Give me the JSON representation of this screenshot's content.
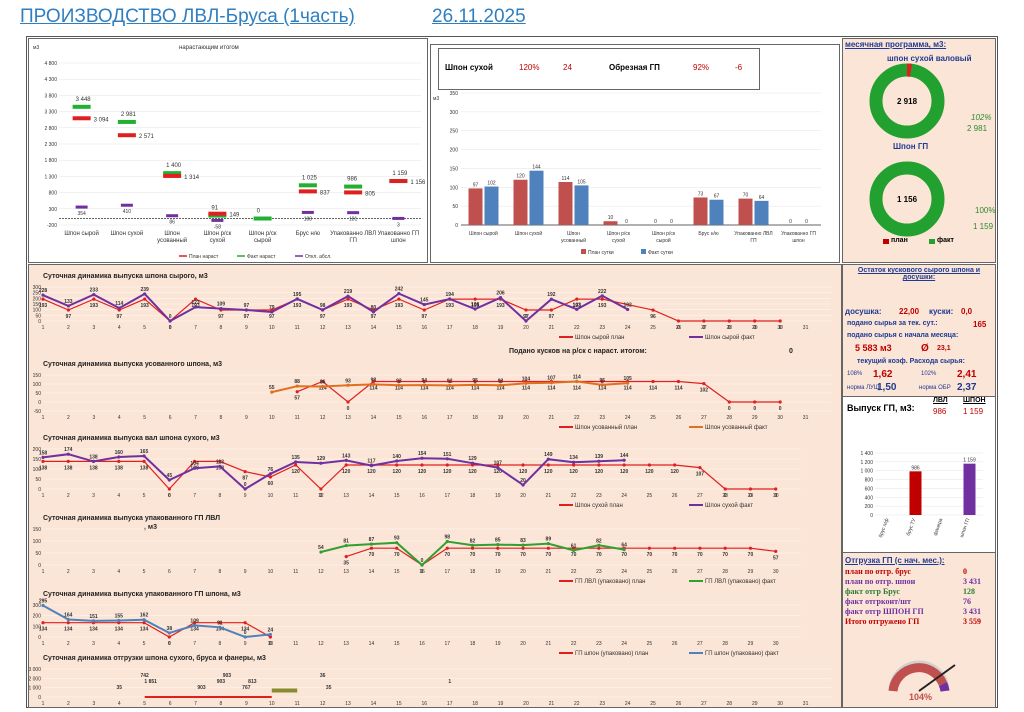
{
  "header": {
    "title": "ПРОИЗВОДСТВО ЛВЛ-Бруса (1часть)",
    "date": "26.11.2025"
  },
  "cum": {
    "unit": "м3",
    "title": "нарастающим итогом",
    "yticks": [
      "4 800",
      "4 300",
      "3 800",
      "3 300",
      "2 800",
      "2 300",
      "1 800",
      "1 300",
      "800",
      "300",
      "-200"
    ],
    "categories": [
      "Шпон сырой",
      "Шпон сухой",
      "Шпон усованный",
      "Шпон р/ск сухой",
      "Шпон р/ск сырой",
      "Брус н/ю",
      "Упакованно ЛВЛ ГП",
      "Упакованно ГП шпон"
    ],
    "plan_labels": [
      "3 094",
      "2 571",
      "1 314",
      "149",
      "",
      "837",
      "805",
      "1 156"
    ],
    "fact_labels": [
      "3 448",
      "2 981",
      "1 400",
      "91",
      "0",
      "1 025",
      "986",
      "1 159"
    ],
    "dev_labels": [
      "354",
      "410",
      "86",
      "-58",
      "",
      "188",
      "181",
      "3"
    ],
    "legend": [
      "План нараст",
      "Факт нараст",
      "Откл. абсл."
    ]
  },
  "pct": {
    "label1": "Шпон сухой",
    "pct1": "120%",
    "val1": "24",
    "label2": "Обрезная ГП",
    "pct2": "92%",
    "val2": "-6"
  },
  "chart_data": [
    {
      "type": "line",
      "title": "нарастающим итогом",
      "categories": [
        "Шпон сырой",
        "Шпон сухой",
        "Шпон усованный",
        "Шпон р/ск сухой",
        "Шпон р/ск сырой",
        "Брус н/ю",
        "Упакованно ЛВЛ ГП",
        "Упакованно ГП шпон"
      ],
      "series": [
        {
          "name": "План нараст",
          "values": [
            3094,
            2571,
            1314,
            149,
            null,
            837,
            805,
            1156
          ]
        },
        {
          "name": "Факт нараст",
          "values": [
            3448,
            2981,
            1400,
            91,
            0,
            1025,
            986,
            1159
          ]
        },
        {
          "name": "Откл. абсл.",
          "values": [
            354,
            410,
            86,
            -58,
            null,
            188,
            181,
            3
          ]
        }
      ],
      "ylim": [
        -200,
        4800
      ]
    },
    {
      "type": "bar",
      "title": "суточный",
      "categories": [
        "Шпон сырой",
        "Шпон сухой",
        "Шпон усованный",
        "Шпон р/ск сухой",
        "Шпон р/ск сырой",
        "Брус н/ю",
        "Упакованно ЛВЛ ГП",
        "Упакованно ГП шпон"
      ],
      "series": [
        {
          "name": "План сутки",
          "values": [
            97,
            120,
            114,
            10,
            0,
            73,
            70,
            0
          ]
        },
        {
          "name": "Факт сутки",
          "values": [
            102,
            144,
            105,
            0,
            0,
            67,
            64,
            0
          ]
        }
      ],
      "ylim": [
        0,
        350
      ]
    }
  ],
  "daily_bar": {
    "yticks": [
      "350",
      "300",
      "250",
      "200",
      "150",
      "100",
      "50",
      "0"
    ],
    "unit": "м3",
    "legend": [
      "План сутки",
      "Факт сутки"
    ],
    "categories": [
      "Шпон сырой",
      "Шпон сухой",
      "Шпон усованный",
      "Шпон р/ск сухой",
      "Шпон р/ск сырой",
      "Брус н/ю",
      "Упакованно ЛВЛ ГП",
      "Упакованно ГП шпон"
    ]
  },
  "month": {
    "title": "месячная программа, м3:",
    "d1_title": "шпон сухой валовый",
    "d1_center": "2 918",
    "d1_pct": "102%",
    "d1_fact": "2 981",
    "d2_title": "Шпон ГП",
    "d2_center": "1 156",
    "d2_pct": "100%",
    "d2_fact": "1 159",
    "legend_plan": "план",
    "legend_fact": "факт"
  },
  "stock": {
    "title": "Остаток кускового сырого шпона и досушки:",
    "dosushka_lbl": "досушка:",
    "dosushka_val": "22,00",
    "kuski_lbl": "куски:",
    "kuski_val": "0,0",
    "podano_lbl": "подано сырья за тек. сут.:",
    "podano_val": "165",
    "podano_m_lbl": "подано сырья с начала месяца:",
    "podano_m_val": "5 583 м3",
    "avg_sym": "Ø",
    "avg_val": "23,1",
    "koef_lbl": "текущий коэф. Расхода сырья:",
    "k1_pct": "108%",
    "k1_val": "1,62",
    "k2_pct": "102%",
    "k2_val": "2,41",
    "norm1_lbl": "норма ЛУЩ:",
    "norm1_val": "1,50",
    "norm2_lbl": "норма ОБР",
    "norm2_val": "2,37"
  },
  "gp": {
    "title": "Выпуск ГП, м3:",
    "col1": "ЛВЛ",
    "col2": "ШПОН",
    "v1": "986",
    "v2": "1 159"
  },
  "gpbar": {
    "yticks": [
      "1 400",
      "1 200",
      "1 000",
      "800",
      "600",
      "400",
      "200",
      "0"
    ],
    "categories": [
      "брус п/ф",
      "брус ТУ",
      "фанера",
      "шпон ГП"
    ],
    "labels": [
      "",
      "986",
      "",
      "1 159"
    ],
    "values": [
      0,
      986,
      0,
      1159
    ]
  },
  "ship": {
    "title": "Отгрузка ГП (с нач. мес.):",
    "rows": [
      {
        "label": "план по отгр. брус",
        "value": "0"
      },
      {
        "label": "план по отгр. шпон",
        "value": "3 431"
      },
      {
        "label": "факт отгр Брус",
        "value": "128"
      },
      {
        "label": "факт отгрконт/шт",
        "value": "76"
      },
      {
        "label": "факт отгр ШПОН ГП",
        "value": "3 431"
      },
      {
        "label": "Итого отгружено ГП",
        "value": "3 559"
      }
    ],
    "gauge_pct": "104%",
    "gauge_value": 104
  },
  "lines": [
    {
      "title": "Суточная динамика выпуска шпона сырого, м3",
      "yticks": [
        "300",
        "250",
        "200",
        "150",
        "100",
        "50",
        "0"
      ],
      "ymax": 300,
      "days": 31,
      "legend": [
        "Шпон сырой план",
        "Шпон сырой факт"
      ],
      "c1": "#e02020",
      "c2": "#7030a0",
      "plan": [
        193,
        97,
        193,
        97,
        193,
        0,
        193,
        97,
        97,
        97,
        193,
        97,
        193,
        97,
        193,
        97,
        193,
        193,
        193,
        97,
        97,
        193,
        193,
        null,
        96,
        0,
        0,
        0,
        0,
        0
      ],
      "fact": [
        228,
        133,
        233,
        114,
        239,
        0,
        123,
        109,
        97,
        79,
        195,
        98,
        219,
        80,
        242,
        145,
        194,
        106,
        206,
        0,
        192,
        103,
        222,
        102,
        null,
        null,
        null,
        null,
        null,
        null
      ]
    },
    {
      "title": "Суточная динамика выпуска усованного шпона, м3",
      "yticks": [
        "150",
        "100",
        "50",
        "0",
        "-50"
      ],
      "ymax": 150,
      "ymin": -50,
      "days": 31,
      "legend": [
        "Шпон усованный план",
        "Шпон усованный факт"
      ],
      "c1": "#e02020",
      "c2": "#e07020",
      "note": "Подано кусков на р/ск с нараст. итогом:",
      "note_val": "0",
      "plan": [
        null,
        null,
        null,
        null,
        null,
        null,
        null,
        null,
        null,
        null,
        57,
        114,
        0,
        114,
        114,
        114,
        114,
        114,
        114,
        114,
        114,
        114,
        114,
        114,
        114,
        114,
        102,
        0,
        0,
        0
      ],
      "fact": [
        null,
        null,
        null,
        null,
        null,
        null,
        null,
        null,
        null,
        55,
        88,
        86,
        93,
        98,
        93,
        94,
        92,
        95,
        93,
        104,
        107,
        114,
        95,
        105,
        null,
        null,
        null,
        null,
        null,
        null
      ]
    },
    {
      "title": "Суточная динамика выпуска вал шпона сухого, м3",
      "yticks": [
        "200",
        "150",
        "100",
        "50",
        "0"
      ],
      "ymax": 200,
      "days": 30,
      "legend": [
        "Шпон сухой план",
        "Шпон сухой факт"
      ],
      "c1": "#e02020",
      "c2": "#7030a0",
      "plan": [
        138,
        138,
        138,
        138,
        138,
        0,
        138,
        138,
        87,
        60,
        120,
        0,
        120,
        120,
        120,
        120,
        120,
        120,
        120,
        120,
        120,
        120,
        120,
        120,
        120,
        120,
        107,
        0,
        0,
        0
      ],
      "fact": [
        158,
        174,
        138,
        160,
        165,
        45,
        104,
        113,
        0,
        76,
        135,
        129,
        143,
        117,
        140,
        154,
        151,
        129,
        107,
        20,
        149,
        134,
        139,
        144,
        null,
        null,
        null,
        null,
        null,
        null
      ]
    },
    {
      "title": "Суточная динамика выпуска упакованного ГП ЛВЛ",
      "yticks": [
        "150",
        "100",
        "50",
        "0"
      ],
      "ymax": 150,
      "days": 30,
      "legend": [
        "ГП ЛВЛ (упаковано) план",
        "ГП ЛВЛ (упаковано) факт"
      ],
      "c1": "#e02020",
      "c2": "#30a030",
      "unit": ", м3",
      "plan": [
        null,
        null,
        null,
        null,
        null,
        null,
        null,
        null,
        null,
        null,
        null,
        null,
        35,
        70,
        70,
        0,
        70,
        70,
        70,
        70,
        70,
        70,
        70,
        70,
        70,
        70,
        70,
        70,
        70,
        57
      ],
      "fact": [
        null,
        null,
        null,
        null,
        null,
        null,
        null,
        null,
        null,
        null,
        null,
        54,
        81,
        87,
        93,
        0,
        98,
        82,
        85,
        83,
        89,
        61,
        82,
        64,
        null,
        null,
        null,
        null,
        null,
        null
      ]
    },
    {
      "title": "Суточная динамика выпуска упакованного ГП шпона, м3",
      "yticks": [
        "300",
        "200",
        "100",
        "0"
      ],
      "ymax": 300,
      "days": 30,
      "legend": [
        "ГП шпон (упаковано) план",
        "ГП шпон (упаковано) факт"
      ],
      "c1": "#e02020",
      "c2": "#4f81bd",
      "plan": [
        134,
        134,
        134,
        134,
        134,
        0,
        134,
        134,
        134,
        0,
        null,
        null,
        null,
        null,
        null,
        null,
        null,
        null,
        null,
        null,
        null,
        null,
        null,
        null,
        null,
        null,
        null,
        null,
        null,
        null
      ],
      "fact": [
        295,
        164,
        151,
        155,
        162,
        38,
        109,
        91,
        0,
        24,
        null,
        null,
        null,
        null,
        null,
        null,
        null,
        null,
        null,
        null,
        null,
        null,
        null,
        null,
        null,
        null,
        null,
        null,
        null,
        null
      ]
    },
    {
      "title": "Суточная динамика отгрузки шпона сухого, бруса и фанеры, м3",
      "yticks": [
        "3 000",
        "2 000",
        "1 000",
        "0"
      ],
      "ymax": 3000,
      "days": 31,
      "legend": [
        "Отгрузка Шпон ГП план",
        "Отгрузка Брус, фанера факт",
        "Отгрузка Шпон ГП (Китай) факт"
      ],
      "c1": "#e02020",
      "c2": "#7030a0",
      "labels": [
        "35",
        "1 851",
        "742",
        "903",
        "903",
        "903",
        "767",
        "813",
        "36",
        "35",
        "1"
      ]
    }
  ]
}
